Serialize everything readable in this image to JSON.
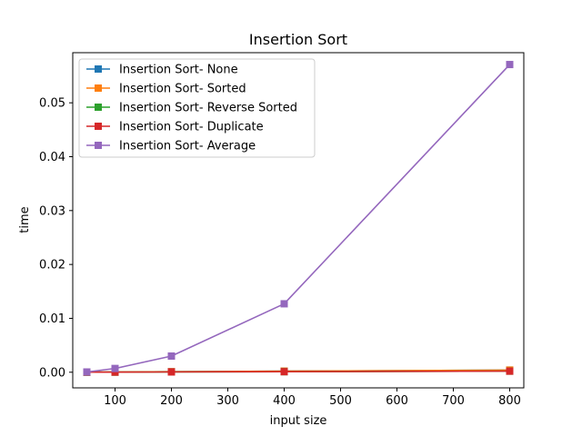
{
  "chart_data": {
    "type": "line",
    "title": "Insertion Sort",
    "xlabel": "input size",
    "ylabel": "time",
    "x": [
      50,
      100,
      200,
      400,
      800
    ],
    "xlim": [
      25,
      825
    ],
    "ylim": [
      -0.0029,
      0.0593
    ],
    "xticks": [
      100,
      200,
      300,
      400,
      500,
      600,
      700,
      800
    ],
    "yticks": [
      0.0,
      0.01,
      0.02,
      0.03,
      0.04,
      0.05
    ],
    "ytick_labels": [
      "0.00",
      "0.01",
      "0.02",
      "0.03",
      "0.04",
      "0.05"
    ],
    "grid": false,
    "legend_position": "top-left",
    "marker": "square",
    "series": [
      {
        "name": "Insertion Sort- None",
        "color": "#1f77b4",
        "values": [
          2e-05,
          4e-05,
          0.0001,
          0.0002,
          0.0004
        ]
      },
      {
        "name": "Insertion Sort- Sorted",
        "color": "#ff7f0e",
        "values": [
          2e-05,
          4e-05,
          0.0001,
          0.0002,
          0.0004
        ]
      },
      {
        "name": "Insertion Sort- Reverse Sorted",
        "color": "#2ca02c",
        "values": [
          1e-05,
          2e-05,
          5e-05,
          0.0001,
          0.0002
        ]
      },
      {
        "name": "Insertion Sort- Duplicate",
        "color": "#d62728",
        "values": [
          1e-05,
          2e-05,
          5e-05,
          0.0001,
          0.0002
        ]
      },
      {
        "name": "Insertion Sort- Average",
        "color": "#9467bd",
        "values": [
          5e-05,
          0.0007,
          0.003,
          0.0127,
          0.0571
        ]
      }
    ]
  }
}
